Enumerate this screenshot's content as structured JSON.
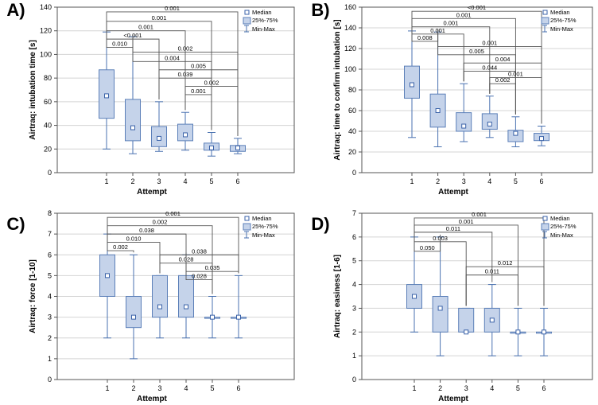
{
  "colors": {
    "box_fill": "#c5d3ea",
    "box_stroke": "#5b7fb8",
    "whisker": "#4a72b0",
    "median_marker": "#3a62a8",
    "grid": "#d4d4d4",
    "bracket": "#555555",
    "axis": "#555555",
    "text": "#000000"
  },
  "chart_data": [
    {
      "type": "boxplot",
      "panel_label": "A)",
      "title": "",
      "xlabel": "Attempt",
      "ylabel": "Airtraq: intubation time [s]",
      "ylim": [
        0,
        140
      ],
      "yticks": [
        0,
        20,
        40,
        60,
        80,
        100,
        120,
        140
      ],
      "categories": [
        "1",
        "2",
        "3",
        "4",
        "5",
        "6"
      ],
      "legend": {
        "position": "top-right",
        "entries": [
          "Median",
          "25%-75%",
          "Min-Max"
        ]
      },
      "series": [
        {
          "name": "1",
          "median": 65,
          "q1": 46,
          "q3": 87,
          "min": 20,
          "max": 119
        },
        {
          "name": "2",
          "median": 38,
          "q1": 27,
          "q3": 62,
          "min": 16,
          "max": 115
        },
        {
          "name": "3",
          "median": 29,
          "q1": 22,
          "q3": 39,
          "min": 18,
          "max": 60
        },
        {
          "name": "4",
          "median": 32,
          "q1": 27,
          "q3": 41,
          "min": 19,
          "max": 51
        },
        {
          "name": "5",
          "median": 21,
          "q1": 19,
          "q3": 25,
          "min": 14,
          "max": 34
        },
        {
          "name": "6",
          "median": 21,
          "q1": 18,
          "q3": 23,
          "min": 16,
          "max": 29
        }
      ],
      "comparisons": [
        {
          "from": "1",
          "to": "6",
          "p": "0.001",
          "y": 136
        },
        {
          "from": "1",
          "to": "5",
          "p": "0.001",
          "y": 128
        },
        {
          "from": "1",
          "to": "4",
          "p": "0.001",
          "y": 120
        },
        {
          "from": "1",
          "to": "3",
          "p": "<0.001",
          "y": 113
        },
        {
          "from": "1",
          "to": "2",
          "p": "0.010",
          "y": 106
        },
        {
          "from": "2",
          "to": "6",
          "p": "0.002",
          "y": 102
        },
        {
          "from": "2",
          "to": "5",
          "p": "0.004",
          "y": 94
        },
        {
          "from": "3",
          "to": "6",
          "p": "0.005",
          "y": 87
        },
        {
          "from": "3",
          "to": "5",
          "p": "0.039",
          "y": 80
        },
        {
          "from": "4",
          "to": "6",
          "p": "0.002",
          "y": 73
        },
        {
          "from": "4",
          "to": "5",
          "p": "0.001",
          "y": 66
        }
      ]
    },
    {
      "type": "boxplot",
      "panel_label": "B)",
      "title": "",
      "xlabel": "Attempt",
      "ylabel": "Airtraq: time to confirm intubation [s]",
      "ylim": [
        0,
        160
      ],
      "yticks": [
        0,
        20,
        40,
        60,
        80,
        100,
        120,
        140,
        160
      ],
      "categories": [
        "1",
        "2",
        "3",
        "4",
        "5",
        "6"
      ],
      "legend": {
        "position": "top-right",
        "entries": [
          "Median",
          "25%-75%",
          "Min-Max"
        ]
      },
      "series": [
        {
          "name": "1",
          "median": 85,
          "q1": 72,
          "q3": 103,
          "min": 34,
          "max": 137
        },
        {
          "name": "2",
          "median": 60,
          "q1": 44,
          "q3": 76,
          "min": 25,
          "max": 136
        },
        {
          "name": "3",
          "median": 45,
          "q1": 40,
          "q3": 58,
          "min": 30,
          "max": 86
        },
        {
          "name": "4",
          "median": 47,
          "q1": 42,
          "q3": 57,
          "min": 34,
          "max": 74
        },
        {
          "name": "5",
          "median": 38,
          "q1": 30,
          "q3": 41,
          "min": 25,
          "max": 54
        },
        {
          "name": "6",
          "median": 33,
          "q1": 31,
          "q3": 38,
          "min": 26,
          "max": 45
        }
      ],
      "comparisons": [
        {
          "from": "1",
          "to": "6",
          "p": "<0.001",
          "y": 156
        },
        {
          "from": "1",
          "to": "5",
          "p": "0.001",
          "y": 149
        },
        {
          "from": "1",
          "to": "4",
          "p": "0.001",
          "y": 141
        },
        {
          "from": "1",
          "to": "3",
          "p": "0.001",
          "y": 134
        },
        {
          "from": "1",
          "to": "2",
          "p": "0.008",
          "y": 127
        },
        {
          "from": "2",
          "to": "6",
          "p": "0.001",
          "y": 122
        },
        {
          "from": "2",
          "to": "5",
          "p": "0.005",
          "y": 114
        },
        {
          "from": "3",
          "to": "6",
          "p": "0.004",
          "y": 106
        },
        {
          "from": "3",
          "to": "5",
          "p": "0.044",
          "y": 98
        },
        {
          "from": "4",
          "to": "6",
          "p": "0.001",
          "y": 92
        },
        {
          "from": "4",
          "to": "5",
          "p": "0.002",
          "y": 86
        }
      ]
    },
    {
      "type": "boxplot",
      "panel_label": "C)",
      "title": "",
      "xlabel": "Attempt",
      "ylabel": "Airtraq: force [1-10]",
      "ylim": [
        0,
        8
      ],
      "yticks": [
        0,
        1,
        2,
        3,
        4,
        5,
        6,
        7,
        8
      ],
      "categories": [
        "1",
        "2",
        "3",
        "4",
        "5",
        "6"
      ],
      "legend": {
        "position": "top-right",
        "entries": [
          "Median",
          "25%-75%",
          "Min-Max"
        ]
      },
      "series": [
        {
          "name": "1",
          "median": 5,
          "q1": 4,
          "q3": 6,
          "min": 2,
          "max": 7
        },
        {
          "name": "2",
          "median": 3,
          "q1": 2.5,
          "q3": 4,
          "min": 1,
          "max": 6
        },
        {
          "name": "3",
          "median": 3.5,
          "q1": 3,
          "q3": 5,
          "min": 2,
          "max": 5
        },
        {
          "name": "4",
          "median": 3.5,
          "q1": 3,
          "q3": 5,
          "min": 2,
          "max": 6
        },
        {
          "name": "5",
          "median": 3,
          "q1": 3,
          "q3": 3,
          "min": 2,
          "max": 4
        },
        {
          "name": "6",
          "median": 3,
          "q1": 3,
          "q3": 3,
          "min": 2,
          "max": 5
        }
      ],
      "comparisons": [
        {
          "from": "1",
          "to": "6",
          "p": "0.001",
          "y": 7.8
        },
        {
          "from": "1",
          "to": "5",
          "p": "0.002",
          "y": 7.4
        },
        {
          "from": "1",
          "to": "4",
          "p": "0.038",
          "y": 7.0
        },
        {
          "from": "1",
          "to": "3",
          "p": "0.010",
          "y": 6.6
        },
        {
          "from": "1",
          "to": "2",
          "p": "0.002",
          "y": 6.2
        },
        {
          "from": "3",
          "to": "6",
          "p": "0.038",
          "y": 6.0
        },
        {
          "from": "3",
          "to": "5",
          "p": "0.028",
          "y": 5.6
        },
        {
          "from": "4",
          "to": "6",
          "p": "0.035",
          "y": 5.2
        },
        {
          "from": "4",
          "to": "5",
          "p": "0.028",
          "y": 4.8
        }
      ]
    },
    {
      "type": "boxplot",
      "panel_label": "D)",
      "title": "",
      "xlabel": "Attempt",
      "ylabel": "Airtraq: easiness [1-6]",
      "ylim": [
        0,
        7
      ],
      "yticks": [
        0,
        1,
        2,
        3,
        4,
        5,
        6,
        7
      ],
      "categories": [
        "1",
        "2",
        "3",
        "4",
        "5",
        "6"
      ],
      "legend": {
        "position": "top-right",
        "entries": [
          "Median",
          "25%-75%",
          "Min-Max"
        ]
      },
      "series": [
        {
          "name": "1",
          "median": 3.5,
          "q1": 3,
          "q3": 4,
          "min": 2,
          "max": 6
        },
        {
          "name": "2",
          "median": 3,
          "q1": 2,
          "q3": 3.5,
          "min": 1,
          "max": 6
        },
        {
          "name": "3",
          "median": 2,
          "q1": 2,
          "q3": 3,
          "min": 2,
          "max": 3
        },
        {
          "name": "4",
          "median": 2.5,
          "q1": 2,
          "q3": 3,
          "min": 1,
          "max": 4
        },
        {
          "name": "5",
          "median": 2,
          "q1": 2,
          "q3": 2,
          "min": 1,
          "max": 3
        },
        {
          "name": "6",
          "median": 2,
          "q1": 2,
          "q3": 2,
          "min": 1,
          "max": 3
        }
      ],
      "comparisons": [
        {
          "from": "1",
          "to": "6",
          "p": "0.001",
          "y": 6.8
        },
        {
          "from": "1",
          "to": "5",
          "p": "0.001",
          "y": 6.5
        },
        {
          "from": "1",
          "to": "4",
          "p": "0.011",
          "y": 6.2
        },
        {
          "from": "1",
          "to": "3",
          "p": "0.003",
          "y": 5.8
        },
        {
          "from": "1",
          "to": "2",
          "p": "0.050",
          "y": 5.4
        },
        {
          "from": "3",
          "to": "6",
          "p": "0.012",
          "y": 4.75
        },
        {
          "from": "3",
          "to": "5",
          "p": "0.011",
          "y": 4.4
        }
      ]
    }
  ]
}
